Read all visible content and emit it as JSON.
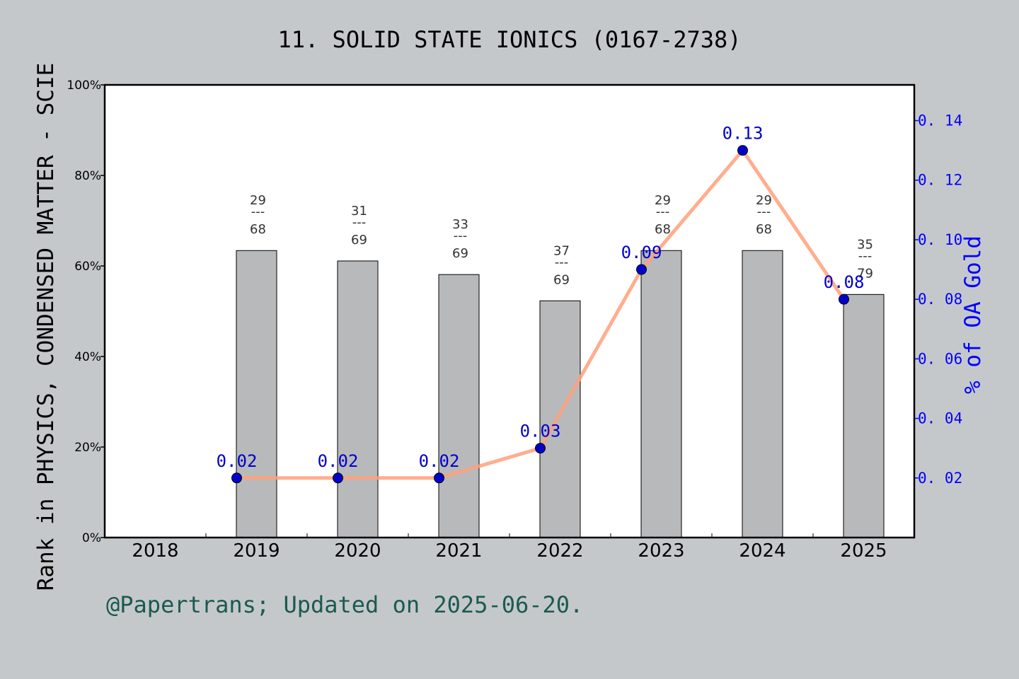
{
  "chart_data": {
    "type": "bar+line",
    "title": "11. SOLID STATE IONICS (0167-2738)",
    "ylabel": "Rank in PHYSICS, CONDENSED MATTER - SCIE",
    "y2label": "% of OA Gold",
    "footer": "@Papertrans; Updated on 2025-06-20.",
    "categories": [
      "2018",
      "2019",
      "2020",
      "2021",
      "2022",
      "2023",
      "2024",
      "2025"
    ],
    "ylim": [
      0,
      100
    ],
    "yticks": [
      "0%",
      "20%",
      "40%",
      "60%",
      "80%",
      "100%"
    ],
    "y2lim": [
      0,
      0.152
    ],
    "y2ticks": [
      "0.02",
      "0.04",
      "0.06",
      "0.08",
      "0.10",
      "0.12",
      "0.14"
    ],
    "bars": [
      null,
      63.4,
      61.1,
      58.1,
      52.3,
      63.4,
      63.4,
      53.7
    ],
    "rank_labels": [
      null,
      [
        "29",
        "68"
      ],
      [
        "31",
        "69"
      ],
      [
        "33",
        "69"
      ],
      [
        "37",
        "69"
      ],
      [
        "29",
        "68"
      ],
      [
        "29",
        "68"
      ],
      [
        "35",
        "79"
      ]
    ],
    "line": [
      null,
      0.02,
      0.02,
      0.02,
      0.03,
      0.09,
      0.13,
      0.08
    ],
    "line_labels": [
      null,
      "0.02",
      "0.02",
      "0.02",
      "0.03",
      "0.09",
      "0.13",
      "0.08"
    ],
    "colors": {
      "bar": "#b8b9bb",
      "line": "#ffa07a",
      "point": "#0000cd",
      "axis2": "#0000ff",
      "footer": "#1a5a50",
      "background": "#c5c8cb"
    }
  }
}
